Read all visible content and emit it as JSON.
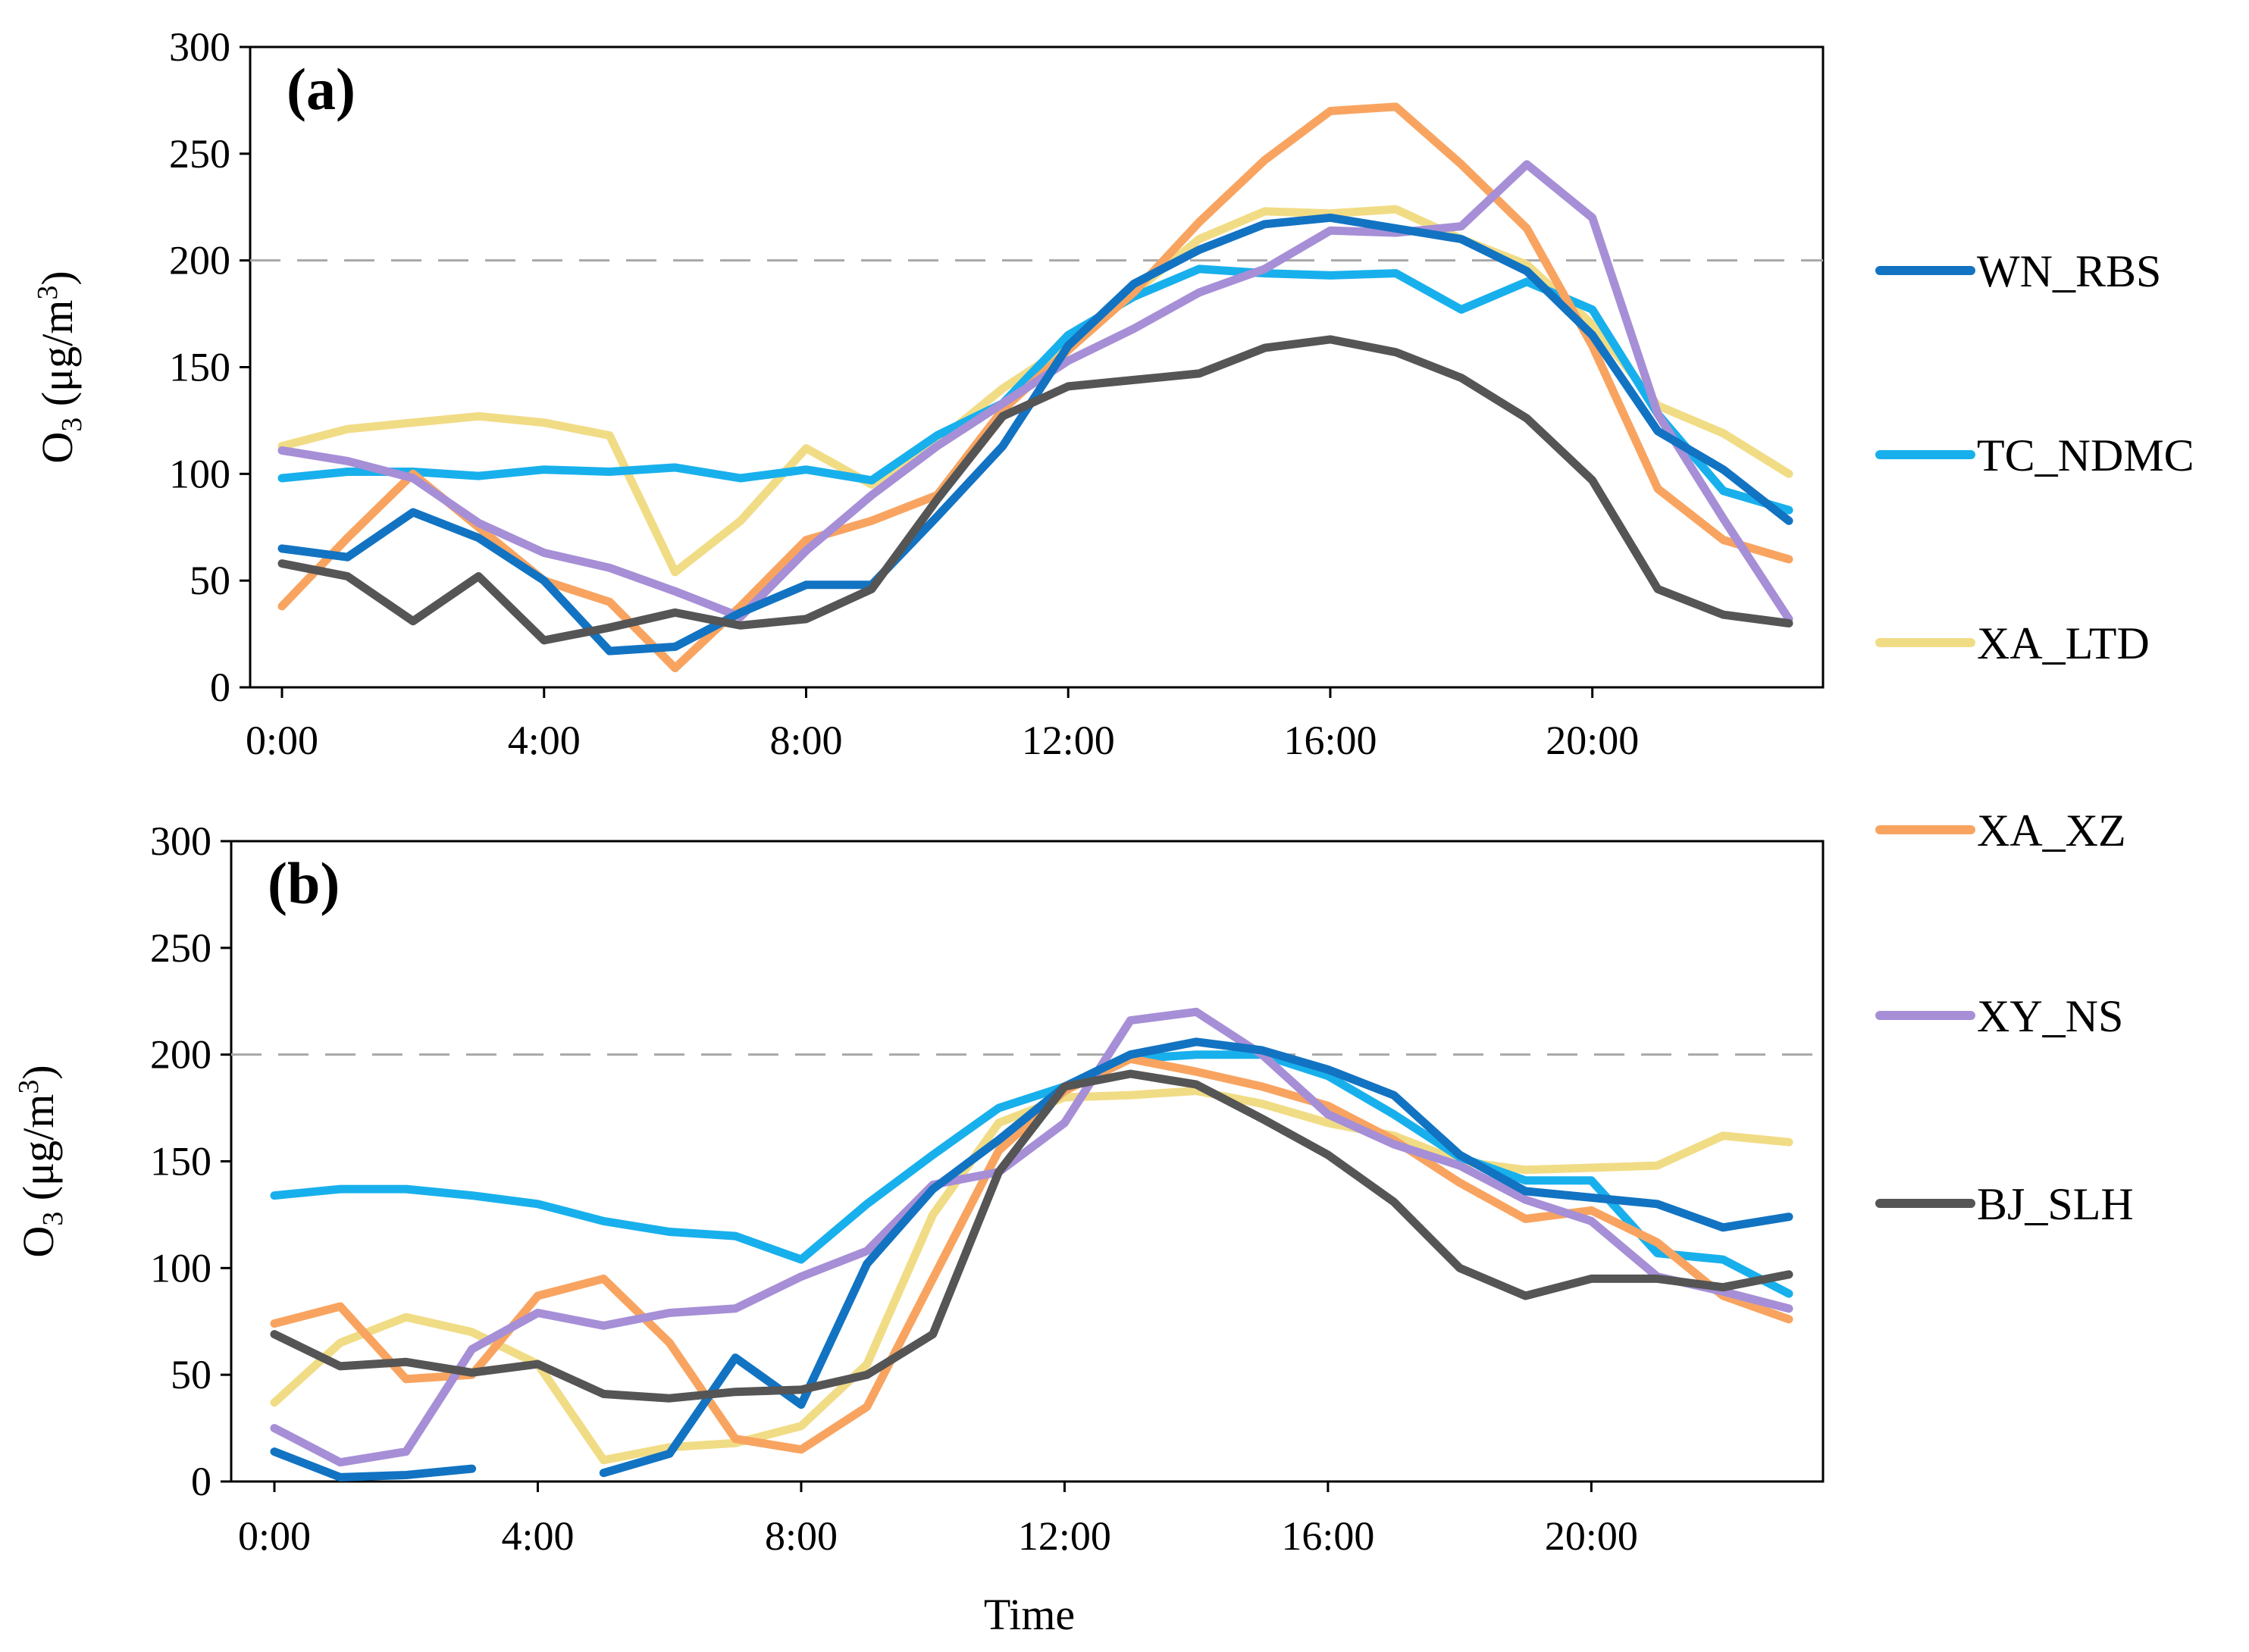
{
  "figure": {
    "xlabel": "Time",
    "legend_position": "right"
  },
  "colors": {
    "WN_RBS": "#1273c2",
    "TC_NDMC": "#18b0ec",
    "XA_LTD": "#f1dc86",
    "XA_XZ": "#f8a460",
    "XY_NS": "#a68fd6",
    "BJ_SLH": "#555555",
    "reference": "#a8a8a8"
  },
  "chart_data": [
    {
      "type": "line",
      "panel_label": "(a)",
      "ylabel_main": "O",
      "ylabel_sub": "3",
      "ylabel_unit_open": " (μg/m",
      "ylabel_unit_sup": "3",
      "ylabel_unit_close": ")",
      "ylim": [
        0,
        300
      ],
      "yticks": [
        0,
        50,
        100,
        150,
        200,
        250,
        300
      ],
      "xlim": [
        0,
        23
      ],
      "xticks": [
        0,
        4,
        8,
        12,
        16,
        20
      ],
      "xticklabels": [
        "0:00",
        "4:00",
        "8:00",
        "12:00",
        "16:00",
        "20:00"
      ],
      "grid": false,
      "reference_line": 200,
      "x": [
        0,
        1,
        2,
        3,
        4,
        5,
        6,
        7,
        8,
        9,
        10,
        11,
        12,
        13,
        14,
        15,
        16,
        17,
        18,
        19,
        20,
        21,
        22,
        23
      ],
      "series": [
        {
          "name": "WN_RBS",
          "values": [
            65,
            61,
            82,
            70,
            50,
            17,
            19,
            35,
            48,
            48,
            80,
            113,
            160,
            189,
            205,
            217,
            220,
            215,
            210,
            195,
            165,
            120,
            102,
            78
          ]
        },
        {
          "name": "TC_NDMC",
          "values": [
            98,
            101,
            101,
            99,
            102,
            101,
            103,
            98,
            102,
            97,
            118,
            133,
            165,
            183,
            196,
            194,
            193,
            194,
            177,
            190,
            177,
            128,
            92,
            83
          ]
        },
        {
          "name": "XA_LTD",
          "values": [
            113,
            121,
            124,
            127,
            124,
            118,
            54,
            78,
            112,
            95,
            115,
            140,
            160,
            185,
            210,
            223,
            222,
            224,
            210,
            198,
            170,
            132,
            119,
            100
          ]
        },
        {
          "name": "XA_XZ",
          "values": [
            38,
            70,
            100,
            75,
            50,
            40,
            9,
            38,
            69,
            78,
            90,
            130,
            158,
            185,
            218,
            247,
            270,
            272,
            245,
            215,
            160,
            93,
            69,
            60
          ]
        },
        {
          "name": "XY_NS",
          "values": [
            111,
            106,
            98,
            77,
            63,
            56,
            45,
            33,
            64,
            90,
            113,
            133,
            153,
            168,
            185,
            196,
            214,
            213,
            216,
            245,
            220,
            128,
            79,
            32
          ]
        },
        {
          "name": "BJ_SLH",
          "values": [
            58,
            52,
            31,
            52,
            22,
            28,
            35,
            29,
            32,
            46,
            88,
            127,
            141,
            144,
            147,
            159,
            163,
            157,
            145,
            126,
            97,
            46,
            34,
            30
          ]
        }
      ]
    },
    {
      "type": "line",
      "panel_label": "(b)",
      "ylabel_main": "O",
      "ylabel_sub": "3",
      "ylabel_unit_open": " (μg/m",
      "ylabel_unit_sup": "3",
      "ylabel_unit_close": ")",
      "ylim": [
        0,
        300
      ],
      "yticks": [
        0,
        50,
        100,
        150,
        200,
        250,
        300
      ],
      "xlim": [
        0,
        23
      ],
      "xticks": [
        0,
        4,
        8,
        12,
        16,
        20
      ],
      "xticklabels": [
        "0:00",
        "4:00",
        "8:00",
        "12:00",
        "16:00",
        "20:00"
      ],
      "grid": false,
      "reference_line": 200,
      "x": [
        0,
        1,
        2,
        3,
        4,
        5,
        6,
        7,
        8,
        9,
        10,
        11,
        12,
        13,
        14,
        15,
        16,
        17,
        18,
        19,
        20,
        21,
        22,
        23
      ],
      "series": [
        {
          "name": "WN_RBS",
          "values": [
            14,
            2,
            3,
            6,
            null,
            4,
            13,
            58,
            36,
            102,
            137,
            160,
            185,
            200,
            206,
            202,
            193,
            181,
            153,
            136,
            133,
            130,
            119,
            124
          ]
        },
        {
          "name": "TC_NDMC",
          "values": [
            134,
            137,
            137,
            134,
            130,
            122,
            117,
            115,
            104,
            130,
            153,
            175,
            185,
            198,
            200,
            200,
            190,
            172,
            152,
            141,
            141,
            107,
            104,
            88
          ]
        },
        {
          "name": "XA_LTD",
          "values": [
            37,
            65,
            77,
            70,
            55,
            10,
            16,
            18,
            26,
            55,
            125,
            168,
            180,
            181,
            183,
            177,
            168,
            162,
            150,
            146,
            147,
            148,
            162,
            159
          ]
        },
        {
          "name": "XA_XZ",
          "values": [
            74,
            82,
            48,
            50,
            87,
            95,
            65,
            20,
            15,
            35,
            95,
            155,
            183,
            198,
            192,
            185,
            176,
            160,
            140,
            123,
            127,
            112,
            87,
            76
          ]
        },
        {
          "name": "XY_NS",
          "values": [
            25,
            9,
            14,
            62,
            79,
            73,
            79,
            81,
            96,
            108,
            139,
            145,
            168,
            216,
            220,
            200,
            172,
            158,
            148,
            132,
            122,
            96,
            89,
            81
          ]
        },
        {
          "name": "BJ_SLH",
          "values": [
            69,
            54,
            56,
            51,
            55,
            41,
            39,
            42,
            43,
            50,
            69,
            145,
            185,
            191,
            186,
            170,
            153,
            131,
            100,
            87,
            95,
            95,
            91,
            97
          ]
        }
      ]
    }
  ],
  "legend": [
    "WN_RBS",
    "TC_NDMC",
    "XA_LTD",
    "XA_XZ",
    "XY_NS",
    "BJ_SLH"
  ]
}
